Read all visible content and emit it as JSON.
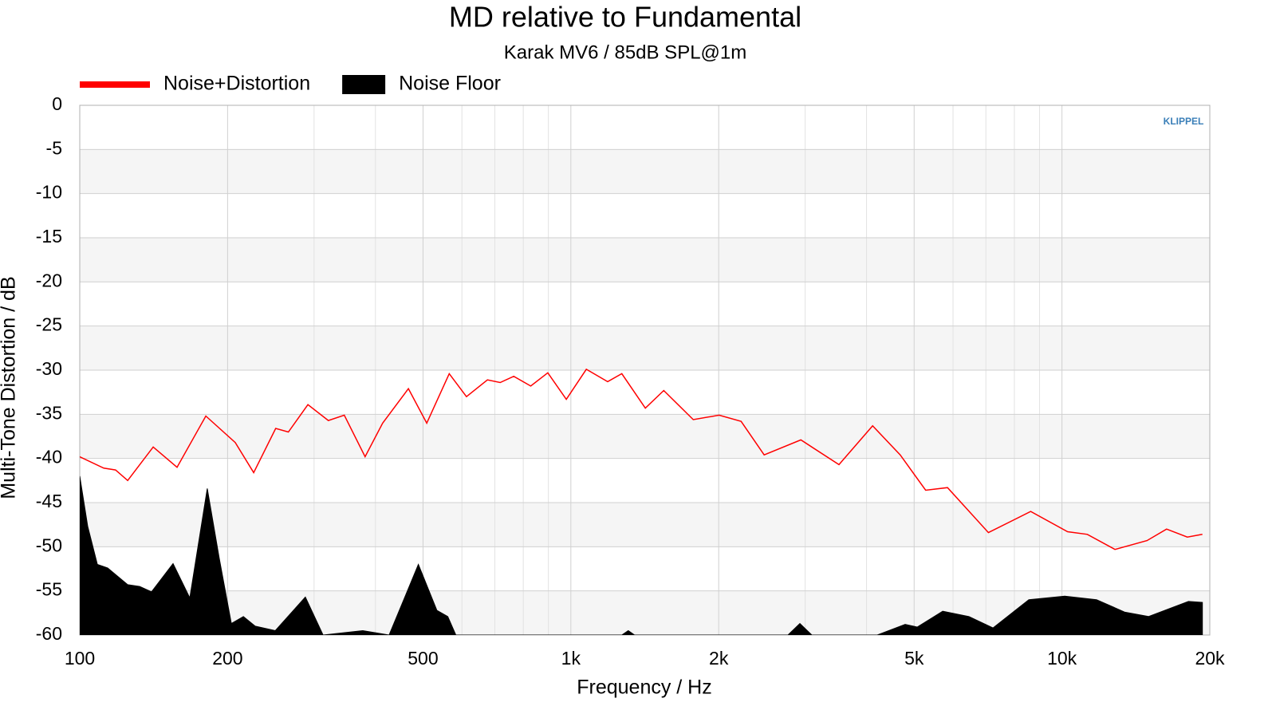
{
  "chart_data": {
    "type": "line",
    "title": "MD relative to Fundamental",
    "subtitle": "Karak MV6 / 85dB SPL@1m",
    "xlabel": "Frequency / Hz",
    "ylabel": "Multi-Tone Distortion / dB",
    "logo": "KLIPPEL",
    "xscale": "log",
    "xlim": [
      100,
      20000
    ],
    "ylim": [
      -60,
      0
    ],
    "xticks": [
      100,
      200,
      500,
      {
        "value": 1000,
        "label": "1k"
      },
      {
        "value": 2000,
        "label": "2k"
      },
      {
        "value": 5000,
        "label": "5k"
      },
      {
        "value": 10000,
        "label": "10k"
      },
      {
        "value": 20000,
        "label": "20k"
      }
    ],
    "xminorticks": [
      300,
      400,
      600,
      700,
      800,
      900,
      3000,
      4000,
      6000,
      7000,
      8000,
      9000
    ],
    "yticks": [
      0,
      -5,
      -10,
      -15,
      -20,
      -25,
      -30,
      -35,
      -40,
      -45,
      -50,
      -55,
      -60
    ],
    "grid": true,
    "legend": "top-left",
    "series": [
      {
        "name": "Noise+Distortion",
        "color": "#ff0000",
        "kind": "line",
        "x": [
          100,
          111.9,
          118.3,
          125.2,
          141.1,
          157.8,
          180.6,
          207.3,
          226,
          250.6,
          266,
          291.5,
          320.8,
          345.7,
          381.1,
          413.8,
          466.8,
          508.8,
          565.4,
          612.9,
          676.4,
          718.1,
          765.2,
          828.6,
          897.5,
          979,
          1075,
          1188,
          1270,
          1418,
          1546,
          1775,
          2004,
          2222,
          2475,
          2940,
          3515,
          4116,
          4685,
          5277,
          5848,
          7083,
          8635,
          10270,
          11260,
          12820,
          14900,
          16330,
          18000,
          19320
        ],
        "values": [
          -39.8,
          -41.1,
          -41.3,
          -42.5,
          -38.7,
          -41,
          -35.2,
          -38.2,
          -41.6,
          -36.6,
          -37,
          -33.9,
          -35.7,
          -35.1,
          -39.8,
          -36,
          -32.1,
          -36,
          -30.4,
          -33,
          -31.1,
          -31.4,
          -30.7,
          -31.8,
          -30.3,
          -33.3,
          -29.9,
          -31.3,
          -30.4,
          -34.3,
          -32.3,
          -35.6,
          -35.1,
          -35.8,
          -39.6,
          -37.9,
          -40.7,
          -36.3,
          -39.6,
          -43.6,
          -43.3,
          -48.4,
          -46,
          -48.3,
          -48.6,
          -50.3,
          -49.3,
          -48,
          -48.9,
          -48.6
        ]
      },
      {
        "name": "Noise Floor",
        "color": "#000000",
        "kind": "area",
        "x": [
          100,
          103.8,
          108.6,
          114,
          125.2,
          132.4,
          140,
          154.9,
          167.5,
          181.8,
          192.3,
          203.6,
          215.4,
          227.6,
          250.1,
          288,
          312.9,
          377,
          426.5,
          489.2,
          533.6,
          561.5,
          583.2,
          1270,
          1309,
          1348,
          2767,
          2927,
          3095,
          4206,
          4794,
          5072,
          5717,
          6466,
          7236,
          8561,
          10130,
          11760,
          13410,
          15000,
          18090,
          19320
        ],
        "values": [
          -42,
          -47.7,
          -52,
          -52.4,
          -54.3,
          -54.5,
          -55.1,
          -51.9,
          -55.8,
          -43.4,
          -51.3,
          -58.7,
          -57.9,
          -59,
          -59.5,
          -55.7,
          -60,
          -59.5,
          -60,
          -52,
          -57.2,
          -57.9,
          -60,
          -60,
          -59.5,
          -60,
          -60,
          -58.7,
          -60,
          -60,
          -58.8,
          -59.1,
          -57.3,
          -57.9,
          -59.2,
          -56,
          -55.6,
          -56,
          -57.4,
          -57.9,
          -56.2,
          -56.3
        ]
      }
    ]
  }
}
